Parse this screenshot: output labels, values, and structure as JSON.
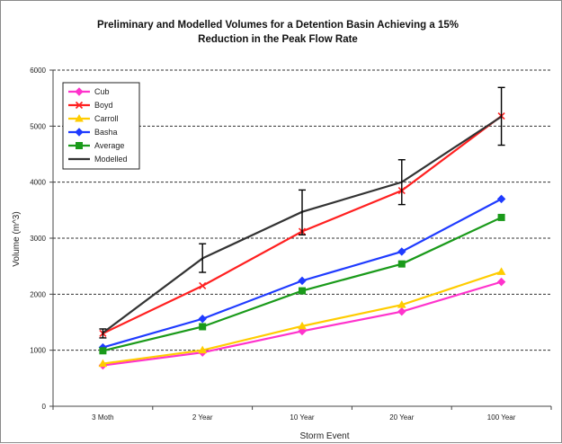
{
  "chart_data": {
    "type": "line",
    "title": "Preliminary and Modelled Volumes for a Detention Basin Achieving a 15% Reduction in the Peak Flow Rate",
    "title_lines": [
      "Preliminary and Modelled Volumes for a Detention Basin Achieving a 15%",
      "Reduction in the Peak Flow Rate"
    ],
    "xlabel": "Storm Event",
    "ylabel": "Volume (m^3)",
    "categories": [
      "3 Month",
      "2 Year",
      "10 Year",
      "20 Year",
      "100 Year"
    ],
    "category_labels": [
      "3 Moth",
      "2 Year",
      "10 Year",
      "20 Year",
      "100 Year"
    ],
    "ylim": [
      0,
      6000
    ],
    "yticks": [
      0,
      1000,
      2000,
      3000,
      4000,
      5000,
      6000
    ],
    "ytick_labels": [
      "0",
      "1000",
      "2000",
      "3000",
      "4000",
      "5000",
      "6000"
    ],
    "grid": "horizontal dashed",
    "legend_position": "top-left",
    "series": [
      {
        "name": "Cub",
        "color": "#ff33cc",
        "marker": "diamond",
        "values": [
          730,
          960,
          1340,
          1690,
          2220
        ]
      },
      {
        "name": "Boyd",
        "color": "#ff2020",
        "marker": "x",
        "values": [
          1300,
          2150,
          3120,
          3850,
          5180
        ]
      },
      {
        "name": "Carroll",
        "color": "#ffcc00",
        "marker": "triangle",
        "values": [
          760,
          1000,
          1430,
          1810,
          2400
        ]
      },
      {
        "name": "Basha",
        "color": "#1f3bff",
        "marker": "diamond",
        "values": [
          1050,
          1560,
          2240,
          2760,
          3700
        ]
      },
      {
        "name": "Average",
        "color": "#1a9a1a",
        "marker": "square",
        "values": [
          990,
          1420,
          2060,
          2540,
          3370
        ]
      },
      {
        "name": "Modelled",
        "color": "#333333",
        "marker": "none",
        "values": [
          1310,
          2640,
          3470,
          4000,
          5170
        ],
        "error_bars": [
          [
            1220,
            1380
          ],
          [
            2390,
            2900
          ],
          [
            3060,
            3860
          ],
          [
            3600,
            4400
          ],
          [
            4660,
            5690
          ]
        ]
      }
    ],
    "legend_labels": [
      "Cub",
      "Boyd",
      "Carroll",
      "Basha",
      "Average",
      "Modelled"
    ]
  }
}
